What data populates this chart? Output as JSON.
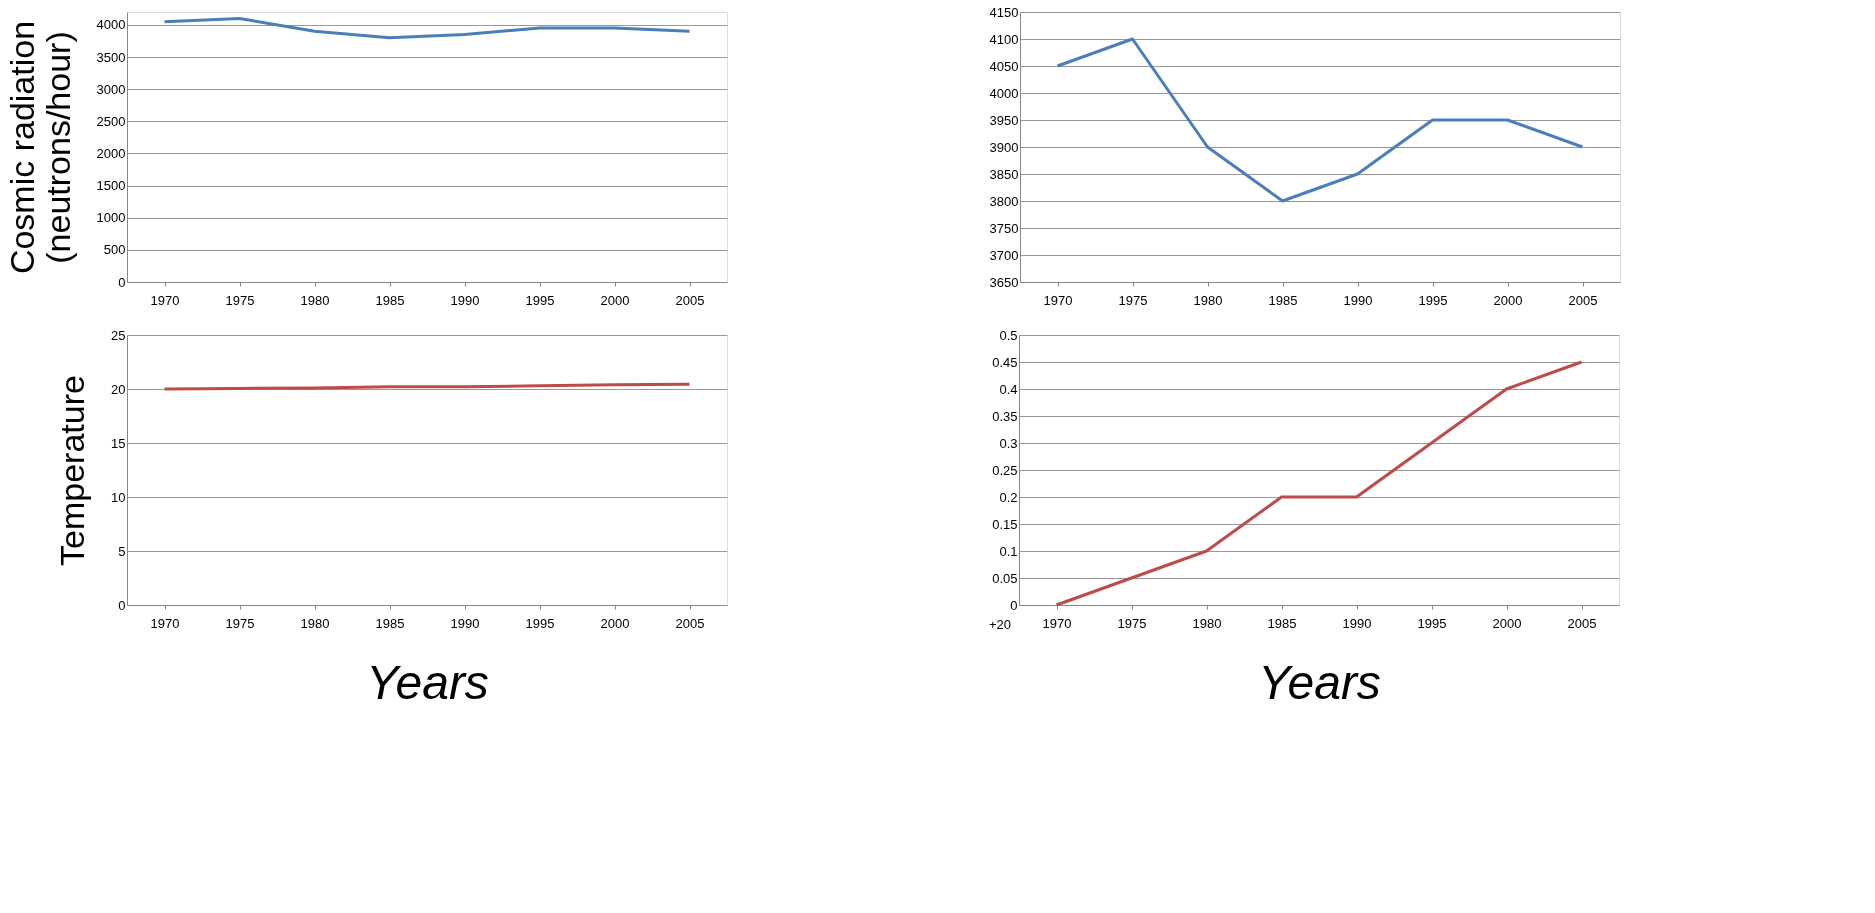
{
  "chart_data": [
    {
      "type": "line",
      "categories": [
        "1970",
        "1975",
        "1980",
        "1985",
        "1990",
        "1995",
        "2000",
        "2005"
      ],
      "values": [
        4050,
        4100,
        3900,
        3800,
        3850,
        3950,
        3950,
        3900
      ],
      "color": "#4a7ebb",
      "ylim": [
        0,
        4200
      ],
      "yticks": [
        0,
        500,
        1000,
        1500,
        2000,
        2500,
        3000,
        3500,
        4000
      ],
      "grid": "y",
      "ylabel": "Cosmic radiation (neutrons/hour)"
    },
    {
      "type": "line",
      "categories": [
        "1970",
        "1975",
        "1980",
        "1985",
        "1990",
        "1995",
        "2000",
        "2005"
      ],
      "values": [
        4050,
        4100,
        3900,
        3800,
        3850,
        3950,
        3950,
        3900
      ],
      "color": "#4a7ebb",
      "ylim": [
        3650,
        4150
      ],
      "yticks": [
        3650,
        3700,
        3750,
        3800,
        3850,
        3900,
        3950,
        4000,
        4050,
        4100,
        4150
      ],
      "grid": "y"
    },
    {
      "type": "line",
      "categories": [
        "1970",
        "1975",
        "1980",
        "1985",
        "1990",
        "1995",
        "2000",
        "2005"
      ],
      "values": [
        20,
        20.05,
        20.1,
        20.2,
        20.2,
        20.3,
        20.4,
        20.45
      ],
      "color": "#be4b48",
      "ylim": [
        0,
        25
      ],
      "yticks": [
        0,
        5,
        10,
        15,
        20,
        25
      ],
      "grid": "y",
      "ylabel": "Temperature",
      "xlabel": "Years"
    },
    {
      "type": "line",
      "categories": [
        "1970",
        "1975",
        "1980",
        "1985",
        "1990",
        "1995",
        "2000",
        "2005"
      ],
      "values": [
        0,
        0.05,
        0.1,
        0.2,
        0.2,
        0.3,
        0.4,
        0.45
      ],
      "color": "#be4b48",
      "ylim": [
        0,
        0.5
      ],
      "yticks": [
        0,
        0.05,
        0.1,
        0.15,
        0.2,
        0.25,
        0.3,
        0.35,
        0.4,
        0.45,
        0.5
      ],
      "grid": "y",
      "xlabel": "Years",
      "annotations": [
        "+20"
      ]
    }
  ]
}
